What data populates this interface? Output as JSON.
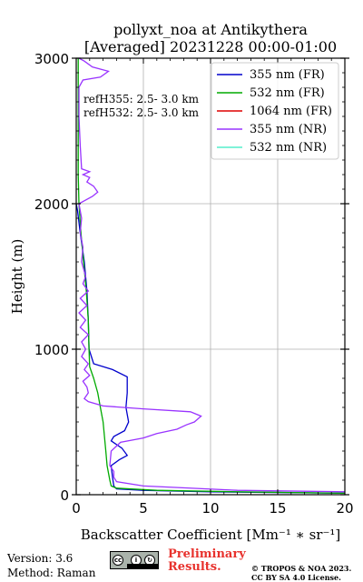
{
  "chart_data": {
    "type": "line",
    "title": [
      "pollyxt_noa at Antikythera",
      "[Averaged] 20231228 00:00-01:00"
    ],
    "xlabel": "Backscatter Coefficient [Mm⁻¹ ∗ sr⁻¹]",
    "ylabel": "Height (m)",
    "xlim": [
      0,
      20
    ],
    "ylim": [
      0,
      3000
    ],
    "xticks": [
      0,
      5,
      10,
      15,
      20
    ],
    "yticks": [
      0,
      1000,
      2000,
      3000
    ],
    "grid": true,
    "legend_position": "top-right",
    "annotations": [
      "refH355:  2.5- 3.0 km",
      "refH532:  2.5- 3.0 km"
    ],
    "series": [
      {
        "name": "355 nm (FR)",
        "color": "#0000cc",
        "points": [
          [
            20,
            10
          ],
          [
            10,
            20
          ],
          [
            5,
            30
          ],
          [
            3,
            40
          ],
          [
            2.8,
            60
          ],
          [
            2.7,
            120
          ],
          [
            2.6,
            200
          ],
          [
            3.2,
            240
          ],
          [
            3.8,
            270
          ],
          [
            3.4,
            320
          ],
          [
            2.6,
            370
          ],
          [
            2.8,
            400
          ],
          [
            3.6,
            440
          ],
          [
            3.9,
            500
          ],
          [
            3.7,
            600
          ],
          [
            3.8,
            700
          ],
          [
            3.8,
            810
          ],
          [
            2.7,
            860
          ],
          [
            1.3,
            900
          ],
          [
            0.95,
            1000
          ],
          [
            0.9,
            1200
          ],
          [
            0.8,
            1400
          ],
          [
            0.6,
            1600
          ],
          [
            0.3,
            1800
          ],
          [
            0.1,
            1950
          ],
          [
            0,
            2000
          ]
        ]
      },
      {
        "name": "532 nm (FR)",
        "color": "#00aa00",
        "points": [
          [
            20,
            10
          ],
          [
            12,
            20
          ],
          [
            6,
            30
          ],
          [
            3,
            45
          ],
          [
            2.6,
            60
          ],
          [
            2.5,
            100
          ],
          [
            2.3,
            200
          ],
          [
            2.2,
            300
          ],
          [
            2.1,
            400
          ],
          [
            2.0,
            500
          ],
          [
            1.8,
            600
          ],
          [
            1.6,
            700
          ],
          [
            1.3,
            800
          ],
          [
            1.0,
            880
          ],
          [
            0.95,
            1000
          ],
          [
            0.9,
            1200
          ],
          [
            0.75,
            1400
          ],
          [
            0.55,
            1600
          ],
          [
            0.35,
            1800
          ],
          [
            0.2,
            2000
          ],
          [
            0.15,
            2200
          ],
          [
            0.15,
            2500
          ],
          [
            0.15,
            2800
          ],
          [
            0.15,
            3000
          ]
        ]
      },
      {
        "name": "1064 nm (FR)",
        "color": "#dd0000",
        "points": []
      },
      {
        "name": "355 nm (NR)",
        "color": "#9933ff",
        "points": [
          [
            20,
            20
          ],
          [
            12,
            30
          ],
          [
            5,
            60
          ],
          [
            3,
            90
          ],
          [
            2.8,
            120
          ],
          [
            2.8,
            160
          ],
          [
            2.5,
            200
          ],
          [
            2.6,
            300
          ],
          [
            3.3,
            360
          ],
          [
            5,
            390
          ],
          [
            6,
            420
          ],
          [
            7.5,
            450
          ],
          [
            8.2,
            480
          ],
          [
            8.8,
            500
          ],
          [
            9.3,
            540
          ],
          [
            8.5,
            570
          ],
          [
            5,
            590
          ],
          [
            2,
            610
          ],
          [
            0.9,
            640
          ],
          [
            0.6,
            660
          ],
          [
            0.9,
            700
          ],
          [
            0.8,
            740
          ],
          [
            0.5,
            780
          ],
          [
            1.0,
            820
          ],
          [
            0.6,
            860
          ],
          [
            0.9,
            900
          ],
          [
            0.4,
            950
          ],
          [
            0.7,
            1000
          ],
          [
            0.4,
            1050
          ],
          [
            0.9,
            1100
          ],
          [
            0.3,
            1150
          ],
          [
            0.7,
            1200
          ],
          [
            0.2,
            1250
          ],
          [
            0.8,
            1300
          ],
          [
            0.3,
            1350
          ],
          [
            0.9,
            1400
          ],
          [
            0.5,
            1450
          ],
          [
            0.7,
            1500
          ],
          [
            0.4,
            1600
          ],
          [
            0.5,
            1700
          ],
          [
            0.3,
            1800
          ],
          [
            0.4,
            1900
          ],
          [
            0.2,
            2000
          ],
          [
            0.6,
            2020
          ],
          [
            1.2,
            2050
          ],
          [
            1.6,
            2080
          ],
          [
            1.3,
            2120
          ],
          [
            0.8,
            2150
          ],
          [
            1.0,
            2180
          ],
          [
            0.5,
            2200
          ],
          [
            1.0,
            2220
          ],
          [
            0.4,
            2240
          ],
          [
            0.3,
            2400
          ],
          [
            0.2,
            2600
          ],
          [
            0.2,
            2800
          ],
          [
            0.5,
            2850
          ],
          [
            1.8,
            2870
          ],
          [
            2.4,
            2910
          ],
          [
            1.2,
            2940
          ],
          [
            0.6,
            2980
          ],
          [
            0.2,
            3000
          ]
        ]
      },
      {
        "name": "532 nm (NR)",
        "color": "#55eecc",
        "points": []
      }
    ]
  },
  "footer": {
    "version": "Version: 3.6",
    "method": "Method: Raman",
    "preliminary_1": "Preliminary",
    "preliminary_2": "Results.",
    "copyright_1": "© TROPOS & NOA 2023.",
    "copyright_2": "CC BY SA 4.0 License.",
    "badge_text": "BY SA"
  }
}
